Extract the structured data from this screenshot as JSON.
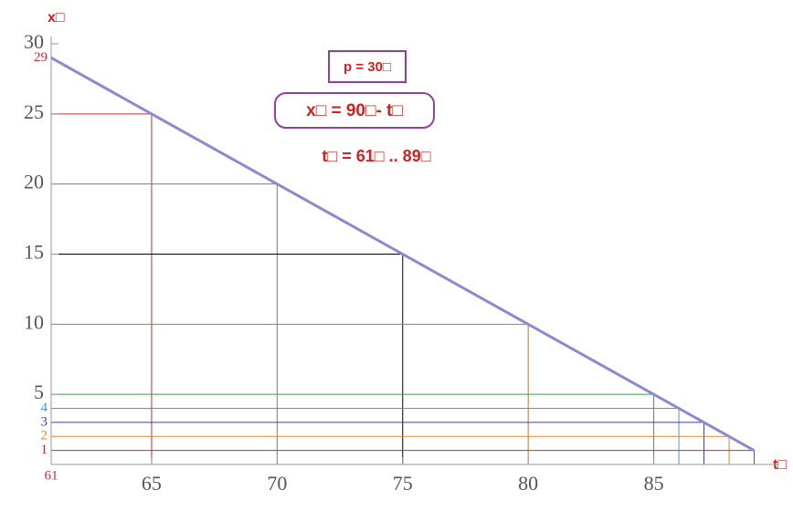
{
  "chart_data": {
    "type": "line",
    "x_label": "t□",
    "y_label": "x□",
    "annotations": [
      "p = 30□",
      "x□ =  90□- t□",
      "t□ = 61□ .. 89□"
    ],
    "xlim": [
      61,
      90
    ],
    "ylim": [
      0,
      30
    ],
    "xticks": [
      65,
      70,
      75,
      80,
      85
    ],
    "yticks": [
      5,
      10,
      15,
      20,
      25,
      30
    ],
    "series": [
      {
        "color": "#8a8ad0",
        "x": [
          61,
          89
        ],
        "values": [
          29,
          1
        ]
      }
    ],
    "drop_lines": [
      {
        "x": 65,
        "y": 25,
        "color": "#c0303a"
      },
      {
        "x": 70,
        "y": 20,
        "color": "#8b7a65"
      },
      {
        "x": 75,
        "y": 15,
        "color": "#000000"
      },
      {
        "x": 80,
        "y": 10,
        "color": "#b07840"
      },
      {
        "x": 85,
        "y": 5,
        "color": "#3a9a50"
      },
      {
        "x": 86,
        "y": 4,
        "color": "#3aa0d0"
      },
      {
        "x": 87,
        "y": 3,
        "color": "#4a3a90"
      },
      {
        "x": 88,
        "y": 2,
        "color": "#e08a30"
      },
      {
        "x": 89,
        "y": 1,
        "color": "#c0303a"
      }
    ],
    "y_marks": [
      {
        "value": 29,
        "color": "#c0303a"
      },
      {
        "value": 4,
        "color": "#3aa0d0"
      },
      {
        "value": 3,
        "color": "#4a3a90"
      },
      {
        "value": 2,
        "color": "#e08a30"
      },
      {
        "value": 1,
        "color": "#c0303a"
      }
    ],
    "x_marks": [
      {
        "value": 61,
        "color": "#c0303a"
      }
    ]
  }
}
